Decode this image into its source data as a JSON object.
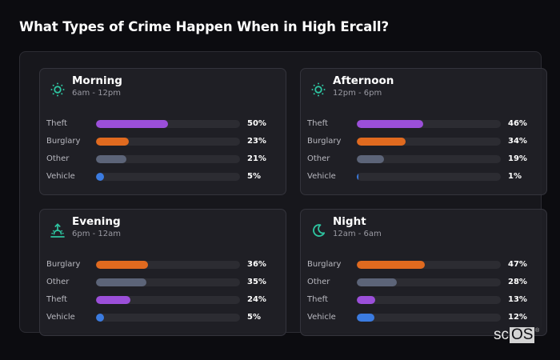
{
  "title": "What Types of Crime Happen When in High Ercall?",
  "colors": {
    "theft": "#9b4fd9",
    "burglary": "#e06a1f",
    "other": "#5c6478",
    "vehicle": "#3b7be0",
    "accent": "#2ec4a0",
    "track": "#2c2c32"
  },
  "cards": [
    {
      "name": "Morning",
      "range": "6am - 12pm",
      "icon": "sun-icon",
      "rows": [
        {
          "label": "Theft",
          "pct": "50%",
          "value": 50,
          "type": "theft"
        },
        {
          "label": "Burglary",
          "pct": "23%",
          "value": 23,
          "type": "burglary"
        },
        {
          "label": "Other",
          "pct": "21%",
          "value": 21,
          "type": "other"
        },
        {
          "label": "Vehicle",
          "pct": "5%",
          "value": 5,
          "type": "vehicle"
        }
      ]
    },
    {
      "name": "Afternoon",
      "range": "12pm - 6pm",
      "icon": "sun-icon",
      "rows": [
        {
          "label": "Theft",
          "pct": "46%",
          "value": 46,
          "type": "theft"
        },
        {
          "label": "Burglary",
          "pct": "34%",
          "value": 34,
          "type": "burglary"
        },
        {
          "label": "Other",
          "pct": "19%",
          "value": 19,
          "type": "other"
        },
        {
          "label": "Vehicle",
          "pct": "1%",
          "value": 1,
          "type": "vehicle"
        }
      ]
    },
    {
      "name": "Evening",
      "range": "6pm - 12am",
      "icon": "sunset-icon",
      "rows": [
        {
          "label": "Burglary",
          "pct": "36%",
          "value": 36,
          "type": "burglary"
        },
        {
          "label": "Other",
          "pct": "35%",
          "value": 35,
          "type": "other"
        },
        {
          "label": "Theft",
          "pct": "24%",
          "value": 24,
          "type": "theft"
        },
        {
          "label": "Vehicle",
          "pct": "5%",
          "value": 5,
          "type": "vehicle"
        }
      ]
    },
    {
      "name": "Night",
      "range": "12am - 6am",
      "icon": "moon-icon",
      "rows": [
        {
          "label": "Burglary",
          "pct": "47%",
          "value": 47,
          "type": "burglary"
        },
        {
          "label": "Other",
          "pct": "28%",
          "value": 28,
          "type": "other"
        },
        {
          "label": "Theft",
          "pct": "13%",
          "value": 13,
          "type": "theft"
        },
        {
          "label": "Vehicle",
          "pct": "12%",
          "value": 12,
          "type": "vehicle"
        }
      ]
    }
  ],
  "logo": {
    "sc": "sc",
    "os": "OS",
    "reg": "®"
  },
  "chart_data": {
    "type": "bar",
    "orientation": "horizontal",
    "title": "What Types of Crime Happen When in High Ercall?",
    "xlabel": "",
    "ylabel": "",
    "xlim": [
      0,
      100
    ],
    "panels": [
      {
        "title": "Morning",
        "subtitle": "6am - 12pm",
        "categories": [
          "Theft",
          "Burglary",
          "Other",
          "Vehicle"
        ],
        "values": [
          50,
          23,
          21,
          5
        ]
      },
      {
        "title": "Afternoon",
        "subtitle": "12pm - 6pm",
        "categories": [
          "Theft",
          "Burglary",
          "Other",
          "Vehicle"
        ],
        "values": [
          46,
          34,
          19,
          1
        ]
      },
      {
        "title": "Evening",
        "subtitle": "6pm - 12am",
        "categories": [
          "Burglary",
          "Other",
          "Theft",
          "Vehicle"
        ],
        "values": [
          36,
          35,
          24,
          5
        ]
      },
      {
        "title": "Night",
        "subtitle": "12am - 6am",
        "categories": [
          "Burglary",
          "Other",
          "Theft",
          "Vehicle"
        ],
        "values": [
          47,
          28,
          13,
          12
        ]
      }
    ]
  }
}
